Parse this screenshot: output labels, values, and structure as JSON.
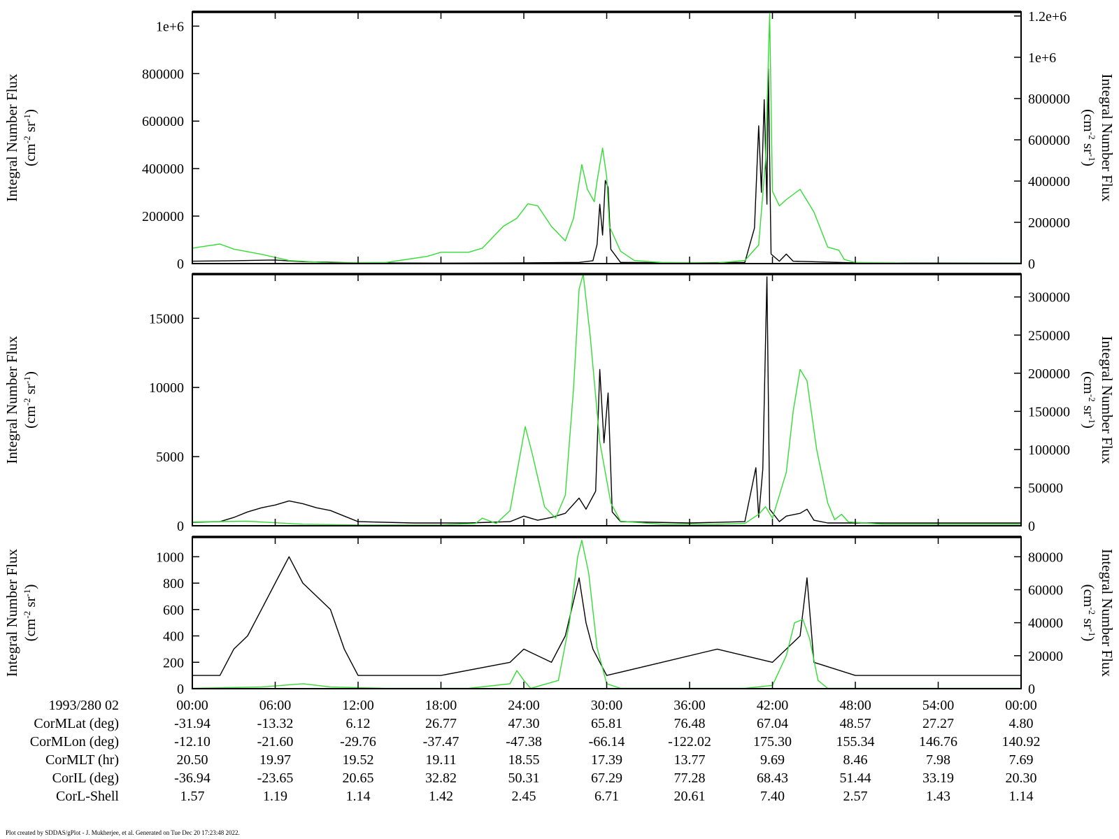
{
  "chart_data": [
    {
      "type": "line",
      "panel": "top",
      "left_axis": {
        "label": "Integral Number Flux",
        "units": "(cm-2 sr-1)",
        "ylim": [
          0,
          1060000
        ],
        "ticks": [
          0,
          200000,
          400000,
          600000,
          800000,
          1000000
        ],
        "tick_labels": [
          "0",
          "200000",
          "400000",
          "600000",
          "800000",
          "1e+6"
        ]
      },
      "right_axis": {
        "label": "Integral Number Flux",
        "units": "(cm-2 sr-1)",
        "ylim": [
          0,
          1220000
        ],
        "ticks": [
          0,
          200000,
          400000,
          600000,
          800000,
          1000000,
          1200000
        ],
        "tick_labels": [
          "0",
          "200000",
          "400000",
          "600000",
          "800000",
          "1e+6",
          "1.2e+6"
        ]
      },
      "series": [
        {
          "color": "#000000",
          "axis": "left",
          "points": [
            [
              0,
              10000
            ],
            [
              3,
              12000
            ],
            [
              6,
              15000
            ],
            [
              8,
              8000
            ],
            [
              12,
              3000
            ],
            [
              18,
              2000
            ],
            [
              24,
              3000
            ],
            [
              28,
              5000
            ],
            [
              29,
              12000
            ],
            [
              29.3,
              80000
            ],
            [
              29.5,
              250000
            ],
            [
              29.7,
              120000
            ],
            [
              29.9,
              350000
            ],
            [
              30.1,
              320000
            ],
            [
              30.3,
              60000
            ],
            [
              31,
              5000
            ],
            [
              36,
              3000
            ],
            [
              40,
              5000
            ],
            [
              40.7,
              150000
            ],
            [
              41.0,
              580000
            ],
            [
              41.2,
              300000
            ],
            [
              41.4,
              690000
            ],
            [
              41.6,
              250000
            ],
            [
              41.7,
              820000
            ],
            [
              41.9,
              40000
            ],
            [
              42.5,
              10000
            ],
            [
              43,
              40000
            ],
            [
              43.5,
              10000
            ],
            [
              48,
              3000
            ],
            [
              60,
              2000
            ]
          ]
        },
        {
          "color": "#33dd33",
          "axis": "right",
          "points": [
            [
              0,
              75000
            ],
            [
              1,
              85000
            ],
            [
              2,
              95000
            ],
            [
              3,
              70000
            ],
            [
              5,
              45000
            ],
            [
              7,
              15000
            ],
            [
              10,
              3000
            ],
            [
              14,
              5000
            ],
            [
              17,
              35000
            ],
            [
              18,
              55000
            ],
            [
              19,
              55000
            ],
            [
              20,
              55000
            ],
            [
              21,
              75000
            ],
            [
              22.5,
              180000
            ],
            [
              23.5,
              220000
            ],
            [
              24.3,
              290000
            ],
            [
              25,
              280000
            ],
            [
              26,
              180000
            ],
            [
              27,
              110000
            ],
            [
              27.6,
              220000
            ],
            [
              28.2,
              480000
            ],
            [
              28.6,
              360000
            ],
            [
              29.1,
              300000
            ],
            [
              29.3,
              400000
            ],
            [
              29.7,
              560000
            ],
            [
              30.0,
              420000
            ],
            [
              30.2,
              180000
            ],
            [
              31,
              60000
            ],
            [
              32,
              15000
            ],
            [
              34,
              5000
            ],
            [
              38,
              3000
            ],
            [
              40,
              15000
            ],
            [
              41,
              90000
            ],
            [
              41.5,
              500000
            ],
            [
              41.8,
              1210000
            ],
            [
              42,
              350000
            ],
            [
              42.5,
              280000
            ],
            [
              43,
              310000
            ],
            [
              44,
              360000
            ],
            [
              45,
              250000
            ],
            [
              46,
              80000
            ],
            [
              46.8,
              65000
            ],
            [
              47.2,
              20000
            ],
            [
              48,
              5000
            ],
            [
              52,
              2000
            ],
            [
              60,
              2000
            ]
          ]
        }
      ]
    },
    {
      "type": "line",
      "panel": "middle",
      "left_axis": {
        "label": "Integral Number Flux",
        "units": "(cm-2 sr-1)",
        "ylim": [
          0,
          18200
        ],
        "ticks": [
          0,
          5000,
          10000,
          15000
        ],
        "tick_labels": [
          "0",
          "5000",
          "10000",
          "15000"
        ]
      },
      "right_axis": {
        "label": "Integral Number Flux",
        "units": "(cm-2 sr-1)",
        "ylim": [
          0,
          330000
        ],
        "ticks": [
          0,
          50000,
          100000,
          150000,
          200000,
          250000,
          300000
        ],
        "tick_labels": [
          "0",
          "50000",
          "100000",
          "150000",
          "200000",
          "250000",
          "300000"
        ]
      },
      "series": [
        {
          "color": "#000000",
          "axis": "left",
          "points": [
            [
              0,
              250
            ],
            [
              2,
              300
            ],
            [
              3,
              600
            ],
            [
              4,
              1000
            ],
            [
              5,
              1300
            ],
            [
              6,
              1500
            ],
            [
              7,
              1800
            ],
            [
              8,
              1600
            ],
            [
              9,
              1300
            ],
            [
              10,
              1100
            ],
            [
              11,
              700
            ],
            [
              12,
              300
            ],
            [
              16,
              200
            ],
            [
              20,
              200
            ],
            [
              23,
              300
            ],
            [
              24,
              700
            ],
            [
              25,
              400
            ],
            [
              26,
              600
            ],
            [
              27,
              900
            ],
            [
              28,
              2000
            ],
            [
              28.5,
              1200
            ],
            [
              29.2,
              2500
            ],
            [
              29.5,
              11300
            ],
            [
              29.8,
              6000
            ],
            [
              30.1,
              9600
            ],
            [
              30.4,
              1000
            ],
            [
              31,
              300
            ],
            [
              36,
              200
            ],
            [
              40,
              300
            ],
            [
              40.8,
              4200
            ],
            [
              41.0,
              600
            ],
            [
              41.3,
              4100
            ],
            [
              41.6,
              18000
            ],
            [
              41.8,
              1200
            ],
            [
              42.5,
              300
            ],
            [
              43,
              700
            ],
            [
              44,
              900
            ],
            [
              44.5,
              1200
            ],
            [
              45,
              400
            ],
            [
              46,
              200
            ],
            [
              60,
              200
            ]
          ]
        },
        {
          "color": "#33dd33",
          "axis": "right",
          "points": [
            [
              0,
              5000
            ],
            [
              4,
              6000
            ],
            [
              8,
              2000
            ],
            [
              12,
              1000
            ],
            [
              18,
              1000
            ],
            [
              20.5,
              3000
            ],
            [
              21,
              10000
            ],
            [
              22,
              3000
            ],
            [
              23,
              20000
            ],
            [
              23.6,
              80000
            ],
            [
              24.1,
              130000
            ],
            [
              24.6,
              95000
            ],
            [
              25.5,
              25000
            ],
            [
              26.3,
              10000
            ],
            [
              27,
              40000
            ],
            [
              27.6,
              180000
            ],
            [
              28.0,
              310000
            ],
            [
              28.3,
              330000
            ],
            [
              28.8,
              250000
            ],
            [
              29.5,
              110000
            ],
            [
              30.3,
              30000
            ],
            [
              31,
              6000
            ],
            [
              34,
              2000
            ],
            [
              38,
              2000
            ],
            [
              40,
              3000
            ],
            [
              41,
              15000
            ],
            [
              41.5,
              25000
            ],
            [
              42,
              10000
            ],
            [
              43,
              70000
            ],
            [
              43.5,
              150000
            ],
            [
              44.0,
              205000
            ],
            [
              44.5,
              190000
            ],
            [
              45.2,
              100000
            ],
            [
              46,
              30000
            ],
            [
              46.5,
              8000
            ],
            [
              47,
              15000
            ],
            [
              47.5,
              5000
            ],
            [
              50,
              2000
            ],
            [
              60,
              2000
            ]
          ]
        }
      ]
    },
    {
      "type": "line",
      "panel": "bottom",
      "left_axis": {
        "label": "Integral Number Flux",
        "units": "(cm-2 sr-1)",
        "ylim": [
          0,
          1150
        ],
        "ticks": [
          0,
          200,
          400,
          600,
          800,
          1000
        ],
        "tick_labels": [
          "0",
          "200",
          "400",
          "600",
          "800",
          "1000"
        ]
      },
      "right_axis": {
        "label": "Integral Number Flux",
        "units": "(cm-2 sr-1)",
        "ylim": [
          0,
          92000
        ],
        "ticks": [
          0,
          20000,
          40000,
          60000,
          80000
        ],
        "tick_labels": [
          "0",
          "20000",
          "40000",
          "60000",
          "80000"
        ]
      },
      "series": [
        {
          "color": "#000000",
          "axis": "left",
          "points": [
            [
              0,
              100
            ],
            [
              2,
              100
            ],
            [
              3,
              300
            ],
            [
              4,
              400
            ],
            [
              5,
              600
            ],
            [
              6,
              800
            ],
            [
              7,
              1000
            ],
            [
              8,
              800
            ],
            [
              9,
              700
            ],
            [
              10,
              600
            ],
            [
              11,
              300
            ],
            [
              12,
              100
            ],
            [
              18,
              100
            ],
            [
              23,
              200
            ],
            [
              24,
              300
            ],
            [
              26,
              200
            ],
            [
              27,
              400
            ],
            [
              28,
              840
            ],
            [
              28.5,
              500
            ],
            [
              29,
              300
            ],
            [
              30,
              100
            ],
            [
              34,
              200
            ],
            [
              38,
              300
            ],
            [
              42,
              200
            ],
            [
              43,
              300
            ],
            [
              44,
              400
            ],
            [
              44.5,
              840
            ],
            [
              45,
              200
            ],
            [
              48,
              100
            ],
            [
              60,
              100
            ]
          ]
        },
        {
          "color": "#33dd33",
          "axis": "right",
          "points": [
            [
              0,
              200
            ],
            [
              5,
              1000
            ],
            [
              8,
              3000
            ],
            [
              10,
              1000
            ],
            [
              14,
              200
            ],
            [
              20,
              200
            ],
            [
              23,
              3000
            ],
            [
              23.5,
              11000
            ],
            [
              24,
              5000
            ],
            [
              24.5,
              200
            ],
            [
              26.5,
              5000
            ],
            [
              27.3,
              40000
            ],
            [
              27.9,
              80000
            ],
            [
              28.2,
              90000
            ],
            [
              28.7,
              70000
            ],
            [
              29.3,
              25000
            ],
            [
              30,
              3000
            ],
            [
              31,
              200
            ],
            [
              40,
              200
            ],
            [
              42,
              2000
            ],
            [
              43,
              20000
            ],
            [
              43.6,
              40000
            ],
            [
              44.2,
              42000
            ],
            [
              44.7,
              30000
            ],
            [
              45.3,
              5000
            ],
            [
              46,
              200
            ],
            [
              60,
              200
            ]
          ]
        }
      ]
    }
  ],
  "x_axis": {
    "range_hours": [
      0,
      60
    ],
    "tick_hours": [
      0,
      6,
      12,
      18,
      24,
      30,
      36,
      42,
      48,
      54,
      60
    ],
    "tick_labels": [
      "00:00",
      "06:00",
      "12:00",
      "18:00",
      "24:00",
      "30:00",
      "36:00",
      "42:00",
      "48:00",
      "54:00",
      "00:00"
    ],
    "date_label": "1993/280 02"
  },
  "ephemeris": [
    {
      "label": "CorMLat (deg)",
      "values": [
        "-31.94",
        "-13.32",
        "6.12",
        "26.77",
        "47.30",
        "65.81",
        "76.48",
        "67.04",
        "48.57",
        "27.27",
        "4.80"
      ]
    },
    {
      "label": "CorMLon (deg)",
      "values": [
        "-12.10",
        "-21.60",
        "-29.76",
        "-37.47",
        "-47.38",
        "-66.14",
        "-122.02",
        "175.30",
        "155.34",
        "146.76",
        "140.92"
      ]
    },
    {
      "label": "CorMLT (hr)",
      "values": [
        "20.50",
        "19.97",
        "19.52",
        "19.11",
        "18.55",
        "17.39",
        "13.77",
        "9.69",
        "8.46",
        "7.98",
        "7.69"
      ]
    },
    {
      "label": "CorIL (deg)",
      "values": [
        "-36.94",
        "-23.65",
        "20.65",
        "32.82",
        "50.31",
        "67.29",
        "77.28",
        "68.43",
        "51.44",
        "33.19",
        "20.30"
      ]
    },
    {
      "label": "CorL-Shell",
      "values": [
        "1.57",
        "1.19",
        "1.14",
        "1.42",
        "2.45",
        "6.71",
        "20.61",
        "7.40",
        "2.57",
        "1.43",
        "1.14"
      ]
    }
  ],
  "footer": "Plot created by SDDAS/gPlot - J. Mukherjee, et al.  Generated on Tue Dec 20 17:23:48 2022."
}
